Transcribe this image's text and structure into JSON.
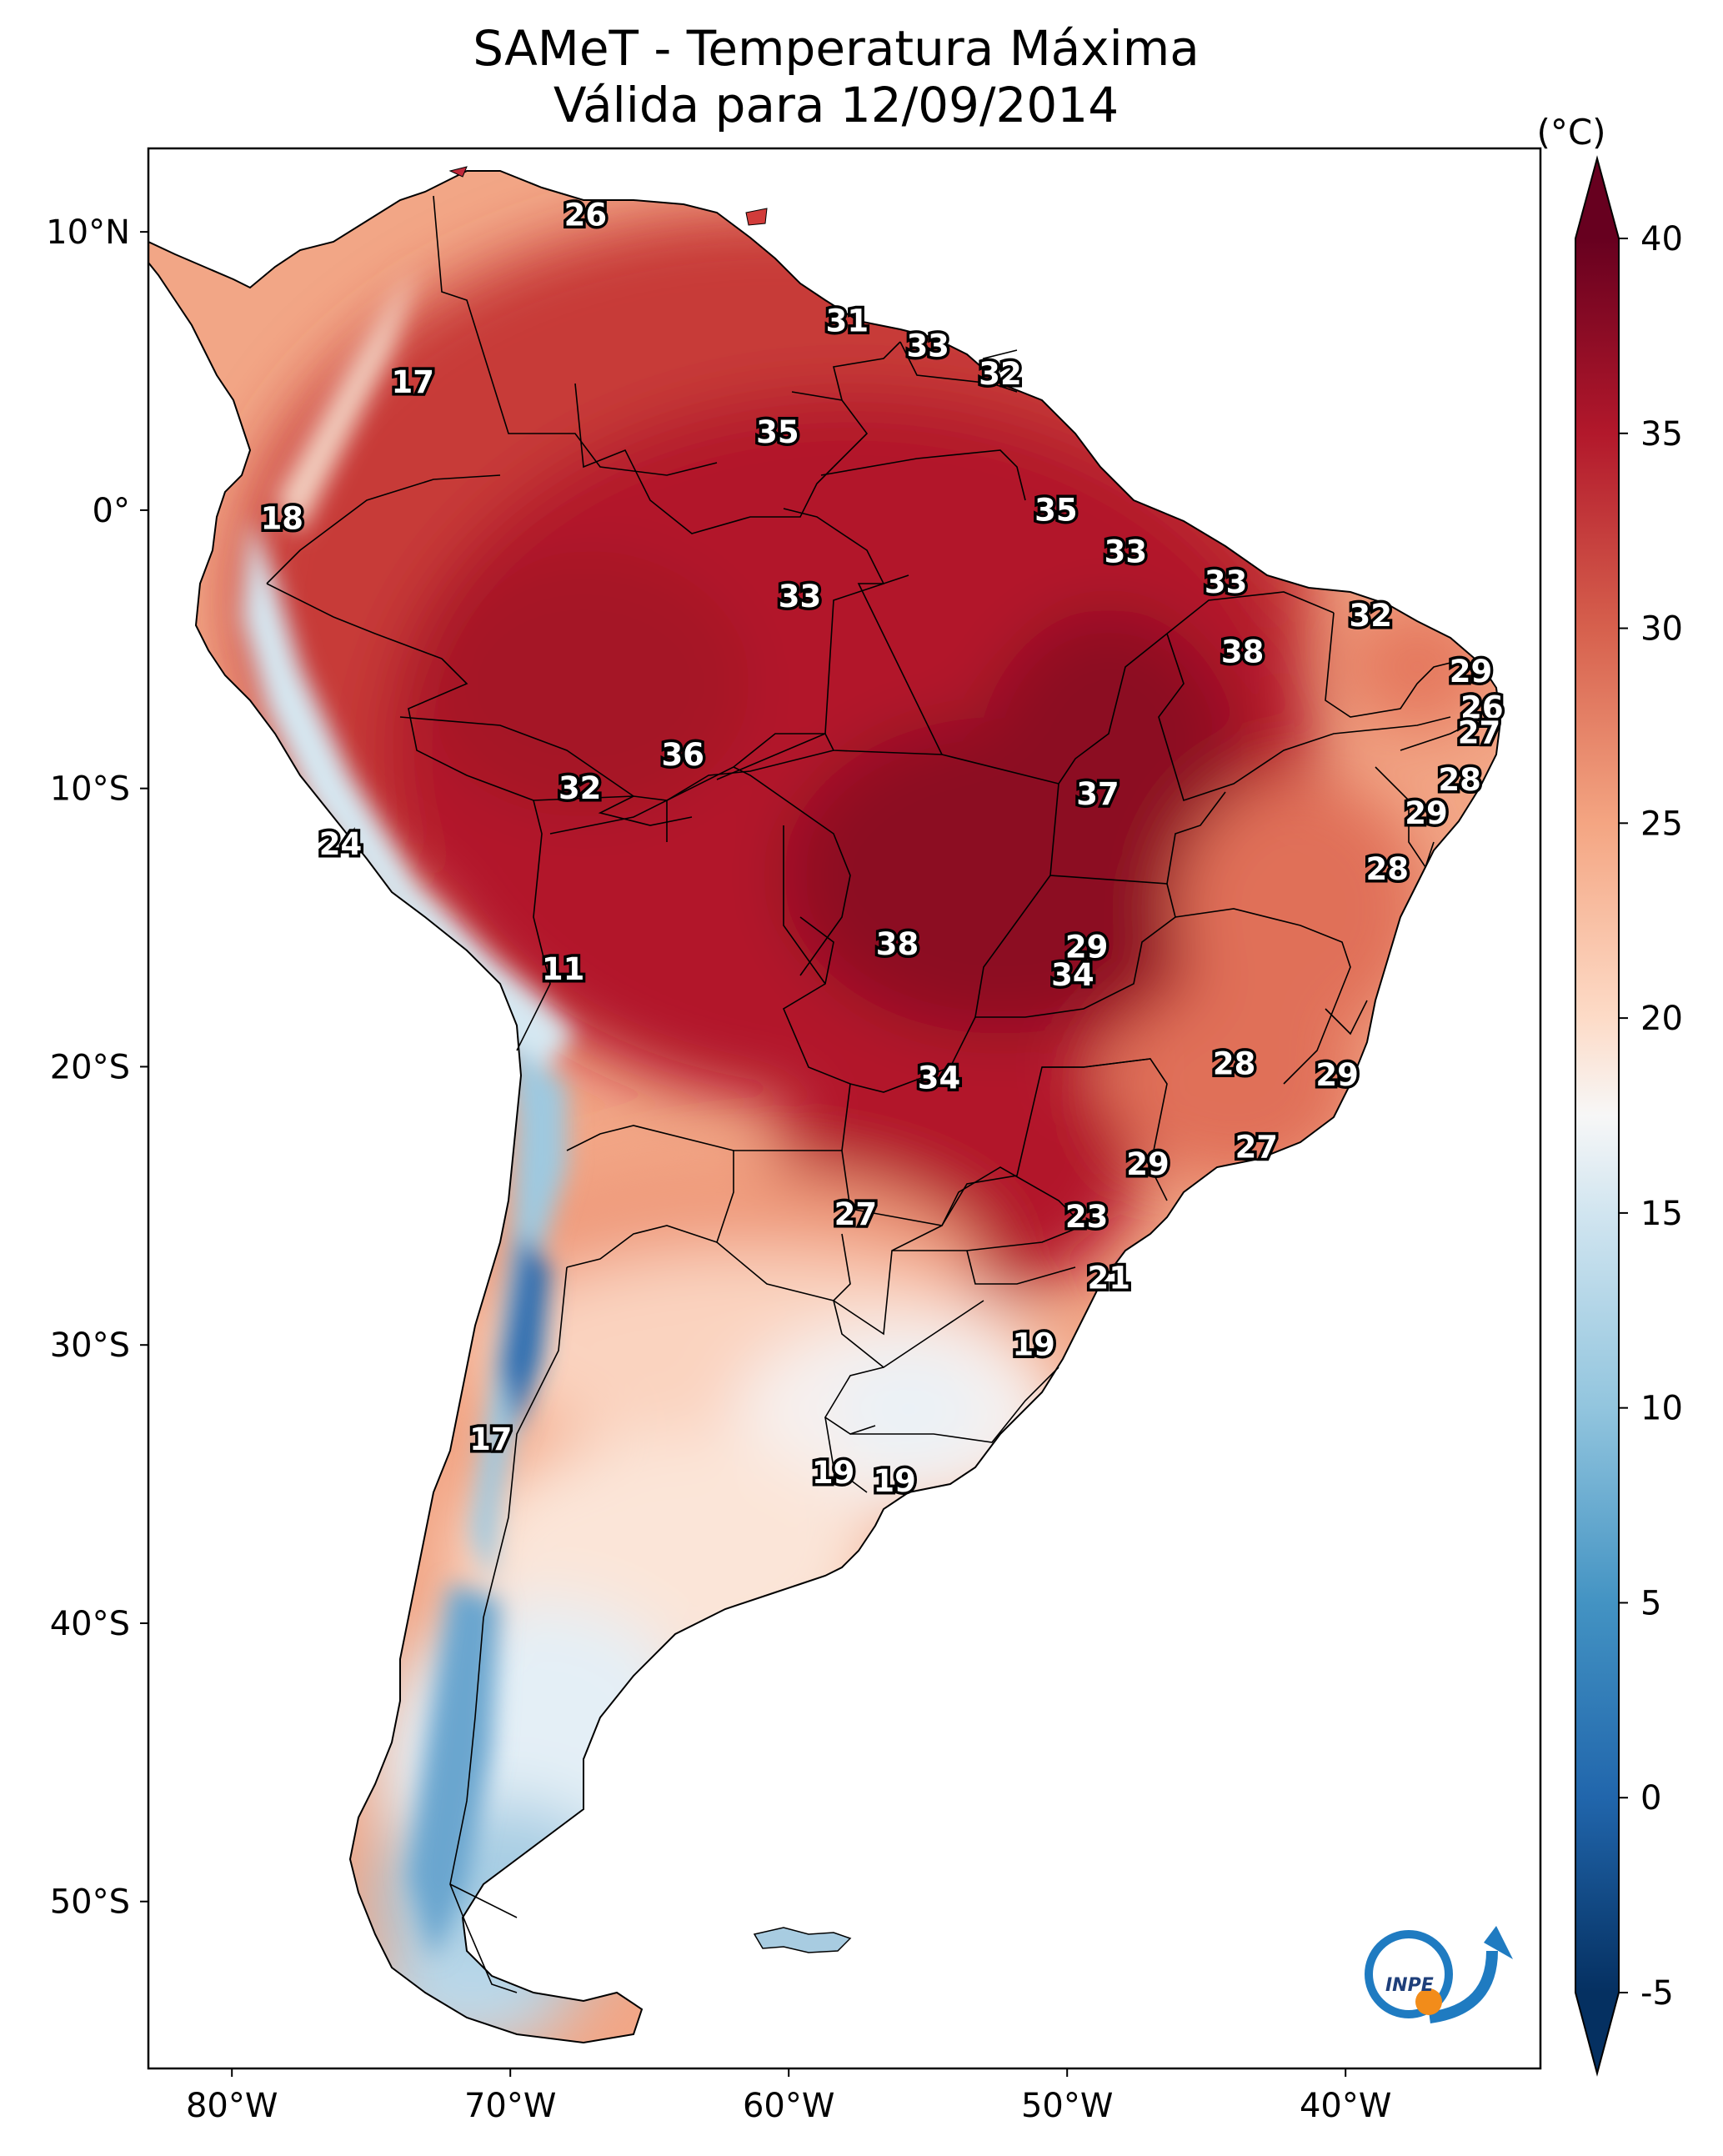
{
  "title": {
    "line1": "SAMeT - Temperatura Máxima",
    "line2": "Válida para 12/09/2014"
  },
  "map": {
    "extent": {
      "lon": [
        -83,
        -33
      ],
      "lat": [
        -56,
        13
      ]
    },
    "x_ticks": [
      {
        "lon": -80,
        "label": "80°W"
      },
      {
        "lon": -70,
        "label": "70°W"
      },
      {
        "lon": -60,
        "label": "60°W"
      },
      {
        "lon": -50,
        "label": "50°W"
      },
      {
        "lon": -40,
        "label": "40°W"
      }
    ],
    "y_ticks": [
      {
        "lat": 10,
        "label": "10°N"
      },
      {
        "lat": 0,
        "label": "0°"
      },
      {
        "lat": -10,
        "label": "10°S"
      },
      {
        "lat": -20,
        "label": "20°S"
      },
      {
        "lat": -30,
        "label": "30°S"
      },
      {
        "lat": -40,
        "label": "40°S"
      },
      {
        "lat": -50,
        "label": "50°S"
      }
    ],
    "station_labels": [
      {
        "lon": -67.3,
        "lat": 10.6,
        "value": "26"
      },
      {
        "lon": -57.9,
        "lat": 6.8,
        "value": "31"
      },
      {
        "lon": -55.0,
        "lat": 5.9,
        "value": "33"
      },
      {
        "lon": -52.4,
        "lat": 4.9,
        "value": "32"
      },
      {
        "lon": -73.5,
        "lat": 4.6,
        "value": "17"
      },
      {
        "lon": -60.4,
        "lat": 2.8,
        "value": "35"
      },
      {
        "lon": -50.4,
        "lat": -0.0,
        "value": "35"
      },
      {
        "lon": -78.2,
        "lat": -0.3,
        "value": "18"
      },
      {
        "lon": -47.9,
        "lat": -1.5,
        "value": "33"
      },
      {
        "lon": -44.3,
        "lat": -2.6,
        "value": "33"
      },
      {
        "lon": -59.6,
        "lat": -3.1,
        "value": "33"
      },
      {
        "lon": -39.1,
        "lat": -3.8,
        "value": "32"
      },
      {
        "lon": -43.7,
        "lat": -5.1,
        "value": "38"
      },
      {
        "lon": -35.5,
        "lat": -5.8,
        "value": "29"
      },
      {
        "lon": -35.1,
        "lat": -7.1,
        "value": "26"
      },
      {
        "lon": -35.2,
        "lat": -8.0,
        "value": "27"
      },
      {
        "lon": -63.8,
        "lat": -8.8,
        "value": "36"
      },
      {
        "lon": -35.9,
        "lat": -9.7,
        "value": "28"
      },
      {
        "lon": -67.5,
        "lat": -10.0,
        "value": "32"
      },
      {
        "lon": -48.9,
        "lat": -10.2,
        "value": "37"
      },
      {
        "lon": -37.1,
        "lat": -10.9,
        "value": "29"
      },
      {
        "lon": -76.1,
        "lat": -12.0,
        "value": "24"
      },
      {
        "lon": -38.5,
        "lat": -12.9,
        "value": "28"
      },
      {
        "lon": -56.1,
        "lat": -15.6,
        "value": "38"
      },
      {
        "lon": -49.3,
        "lat": -15.7,
        "value": "29"
      },
      {
        "lon": -49.8,
        "lat": -16.7,
        "value": "34"
      },
      {
        "lon": -68.1,
        "lat": -16.5,
        "value": "11"
      },
      {
        "lon": -44.0,
        "lat": -19.9,
        "value": "28"
      },
      {
        "lon": -40.3,
        "lat": -20.3,
        "value": "29"
      },
      {
        "lon": -54.6,
        "lat": -20.4,
        "value": "34"
      },
      {
        "lon": -43.2,
        "lat": -22.9,
        "value": "27"
      },
      {
        "lon": -47.1,
        "lat": -23.5,
        "value": "29"
      },
      {
        "lon": -57.6,
        "lat": -25.3,
        "value": "27"
      },
      {
        "lon": -49.3,
        "lat": -25.4,
        "value": "23"
      },
      {
        "lon": -48.5,
        "lat": -27.6,
        "value": "21"
      },
      {
        "lon": -51.2,
        "lat": -30.0,
        "value": "19"
      },
      {
        "lon": -70.7,
        "lat": -33.4,
        "value": "17"
      },
      {
        "lon": -58.4,
        "lat": -34.6,
        "value": "19"
      },
      {
        "lon": -56.2,
        "lat": -34.9,
        "value": "19"
      }
    ],
    "logo_text": "INPE"
  },
  "colorbar": {
    "unit": "(°C)",
    "vmin": -5,
    "vmax": 40,
    "ticks": [
      -5,
      0,
      5,
      10,
      15,
      20,
      25,
      30,
      35,
      40
    ],
    "tick_labels": [
      "-5",
      "0",
      "5",
      "10",
      "15",
      "20",
      "25",
      "30",
      "35",
      "40"
    ],
    "stops": [
      {
        "value": -5,
        "color": "#053061"
      },
      {
        "value": 0,
        "color": "#2166ac"
      },
      {
        "value": 5,
        "color": "#4393c3"
      },
      {
        "value": 10,
        "color": "#92c5de"
      },
      {
        "value": 15,
        "color": "#d1e5f0"
      },
      {
        "value": 17.5,
        "color": "#f7f7f7"
      },
      {
        "value": 20,
        "color": "#fddbc7"
      },
      {
        "value": 25,
        "color": "#f4a582"
      },
      {
        "value": 30,
        "color": "#d6604d"
      },
      {
        "value": 35,
        "color": "#b2182b"
      },
      {
        "value": 40,
        "color": "#67001f"
      }
    ]
  }
}
